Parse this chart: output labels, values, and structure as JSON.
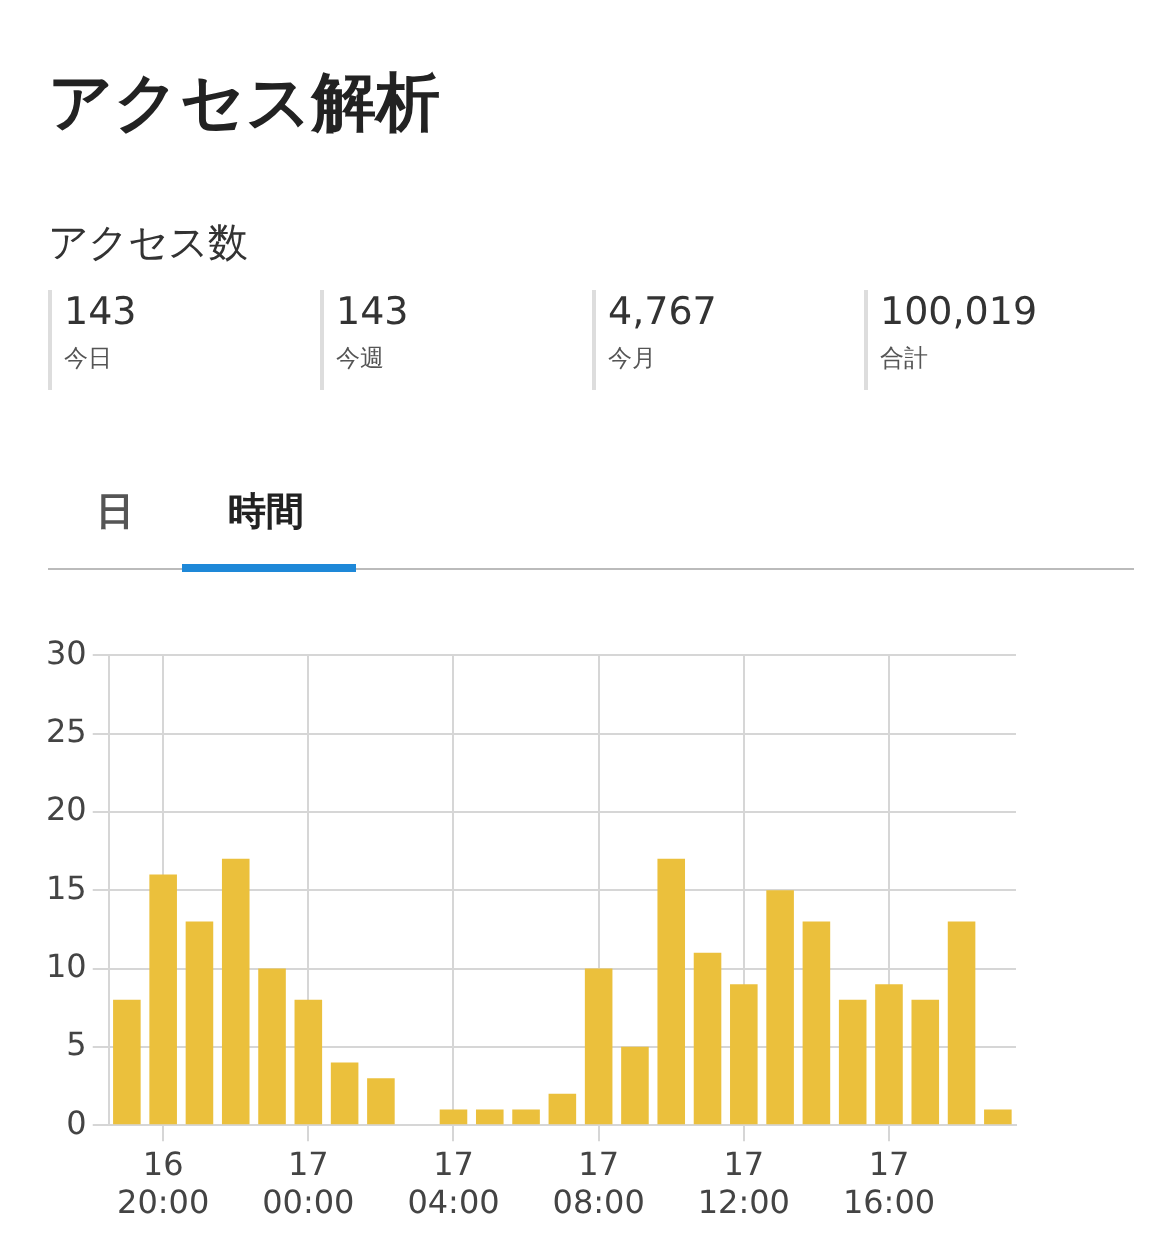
{
  "chart_data": {
    "type": "bar",
    "title": "アクセス解析",
    "subtitle": "アクセス数",
    "annotations": [
      "143",
      "今日",
      "143",
      "今週",
      "4,767",
      "今月",
      "100,019",
      "合計",
      "日",
      "時間"
    ],
    "categories": [
      null,
      "16\n20:00",
      null,
      null,
      null,
      "17\n00:00",
      null,
      null,
      null,
      "17\n04:00",
      null,
      null,
      null,
      "17\n08:00",
      null,
      null,
      null,
      "17\n12:00",
      null,
      null,
      null,
      "17\n16:00",
      null,
      null,
      null
    ],
    "values": [
      8,
      16,
      13,
      17,
      10,
      8,
      4,
      3,
      0,
      1,
      1,
      1,
      2,
      10,
      5,
      17,
      11,
      9,
      15,
      13,
      8,
      9,
      8,
      13,
      1
    ],
    "color": "#ebc03c",
    "ylim": [
      0,
      30
    ],
    "yticks": [
      0,
      5,
      10,
      15,
      20,
      25,
      30
    ],
    "grid": true,
    "legend": false
  }
}
